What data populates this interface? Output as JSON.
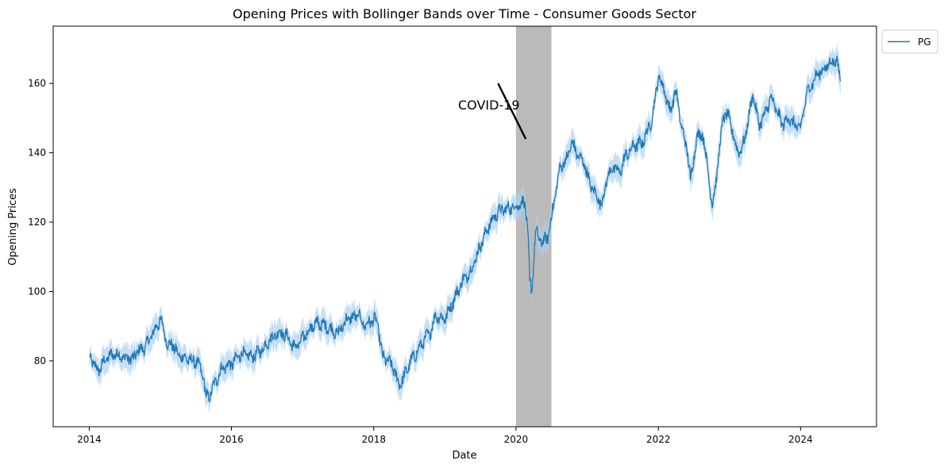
{
  "chart_data": {
    "type": "line",
    "title": "Opening Prices with Bollinger Bands over Time - Consumer Goods Sector",
    "xlabel": "Date",
    "ylabel": "Opening Prices",
    "xlim": [
      "2013-06-30",
      "2025-01-25"
    ],
    "ylim": [
      61,
      176.5
    ],
    "x_ticks": [
      "2014",
      "2016",
      "2018",
      "2020",
      "2022",
      "2024"
    ],
    "y_ticks": [
      80,
      100,
      120,
      140,
      160
    ],
    "grid": false,
    "legend": {
      "placement": "outside-top-right",
      "entries": [
        "PG"
      ]
    },
    "colors": {
      "line": "#1f77b4",
      "band": "#aed1ef",
      "shade": "#a9a9a9"
    },
    "shaded_region": {
      "start": "2020-01-01",
      "end": "2020-07-01",
      "label": ""
    },
    "annotation": {
      "text": "COVID-19",
      "text_at": [
        "2019-08-15",
        152.5
      ],
      "line_from": [
        "2019-10-01",
        160
      ],
      "line_to": [
        "2020-02-20",
        144
      ]
    },
    "series": [
      {
        "name": "PG",
        "band_width": 3,
        "points": [
          [
            "2014-01-02",
            81.5
          ],
          [
            "2014-02-15",
            77
          ],
          [
            "2014-04-01",
            81
          ],
          [
            "2014-05-15",
            82
          ],
          [
            "2014-07-01",
            81
          ],
          [
            "2014-08-15",
            80.5
          ],
          [
            "2014-09-01",
            82.5
          ],
          [
            "2014-10-15",
            84
          ],
          [
            "2014-11-15",
            87
          ],
          [
            "2014-12-15",
            90
          ],
          [
            "2015-01-01",
            92
          ],
          [
            "2015-01-20",
            89
          ],
          [
            "2015-02-10",
            84
          ],
          [
            "2015-03-01",
            85
          ],
          [
            "2015-04-01",
            82
          ],
          [
            "2015-05-15",
            80.5
          ],
          [
            "2015-06-15",
            80
          ],
          [
            "2015-07-15",
            79.5
          ],
          [
            "2015-08-10",
            75
          ],
          [
            "2015-08-25",
            69.5
          ],
          [
            "2015-09-15",
            70.5
          ],
          [
            "2015-10-15",
            74.5
          ],
          [
            "2015-11-15",
            78
          ],
          [
            "2016-01-01",
            79
          ],
          [
            "2016-02-10",
            81.5
          ],
          [
            "2016-03-01",
            82
          ],
          [
            "2016-04-15",
            81
          ],
          [
            "2016-06-01",
            83
          ],
          [
            "2016-07-15",
            86
          ],
          [
            "2016-09-01",
            88.5
          ],
          [
            "2016-10-15",
            87
          ],
          [
            "2016-11-15",
            84
          ],
          [
            "2016-12-15",
            85
          ],
          [
            "2017-02-01",
            89
          ],
          [
            "2017-03-15",
            91
          ],
          [
            "2017-05-01",
            90
          ],
          [
            "2017-07-01",
            88
          ],
          [
            "2017-08-15",
            92
          ],
          [
            "2017-10-15",
            93
          ],
          [
            "2017-11-15",
            90
          ],
          [
            "2018-01-01",
            92
          ],
          [
            "2018-01-20",
            91
          ],
          [
            "2018-02-15",
            81
          ],
          [
            "2018-03-15",
            80
          ],
          [
            "2018-04-15",
            77.5
          ],
          [
            "2018-05-10",
            73
          ],
          [
            "2018-06-01",
            75
          ],
          [
            "2018-07-15",
            80.5
          ],
          [
            "2018-08-15",
            83
          ],
          [
            "2018-09-15",
            86
          ],
          [
            "2018-10-15",
            88
          ],
          [
            "2018-11-15",
            93
          ],
          [
            "2019-01-01",
            92
          ],
          [
            "2019-02-15",
            97.5
          ],
          [
            "2019-04-01",
            103
          ],
          [
            "2019-05-15",
            106
          ],
          [
            "2019-07-01",
            113
          ],
          [
            "2019-08-15",
            119
          ],
          [
            "2019-10-01",
            123
          ],
          [
            "2019-11-15",
            124
          ],
          [
            "2020-01-01",
            124.5
          ],
          [
            "2020-02-15",
            126
          ],
          [
            "2020-03-01",
            118
          ],
          [
            "2020-03-12",
            103
          ],
          [
            "2020-03-22",
            100
          ],
          [
            "2020-04-10",
            117
          ],
          [
            "2020-05-15",
            114
          ],
          [
            "2020-06-15",
            116
          ],
          [
            "2020-07-15",
            126
          ],
          [
            "2020-08-15",
            136
          ],
          [
            "2020-09-15",
            138
          ],
          [
            "2020-10-15",
            143
          ],
          [
            "2020-11-15",
            139
          ],
          [
            "2020-12-15",
            137
          ],
          [
            "2021-01-15",
            131
          ],
          [
            "2021-02-15",
            128
          ],
          [
            "2021-03-15",
            125
          ],
          [
            "2021-04-15",
            133
          ],
          [
            "2021-05-15",
            136
          ],
          [
            "2021-06-15",
            134
          ],
          [
            "2021-07-15",
            139
          ],
          [
            "2021-09-01",
            142
          ],
          [
            "2021-10-15",
            143
          ],
          [
            "2021-12-01",
            150
          ],
          [
            "2022-01-01",
            162
          ],
          [
            "2022-02-01",
            158
          ],
          [
            "2022-03-01",
            152
          ],
          [
            "2022-04-01",
            158
          ],
          [
            "2022-05-01",
            147
          ],
          [
            "2022-06-01",
            140
          ],
          [
            "2022-06-15",
            132
          ],
          [
            "2022-07-15",
            144
          ],
          [
            "2022-08-15",
            146
          ],
          [
            "2022-09-15",
            134
          ],
          [
            "2022-10-05",
            124
          ],
          [
            "2022-11-01",
            136
          ],
          [
            "2022-12-01",
            151
          ],
          [
            "2023-01-01",
            150
          ],
          [
            "2023-02-01",
            142
          ],
          [
            "2023-03-01",
            140
          ],
          [
            "2023-04-01",
            147
          ],
          [
            "2023-05-01",
            157
          ],
          [
            "2023-06-01",
            148
          ],
          [
            "2023-07-01",
            151
          ],
          [
            "2023-08-01",
            156
          ],
          [
            "2023-09-01",
            152
          ],
          [
            "2023-10-01",
            148
          ],
          [
            "2023-11-01",
            150
          ],
          [
            "2023-12-01",
            148
          ],
          [
            "2024-01-01",
            147
          ],
          [
            "2024-02-01",
            157
          ],
          [
            "2024-03-01",
            160
          ],
          [
            "2024-04-01",
            163
          ],
          [
            "2024-05-01",
            164
          ],
          [
            "2024-06-01",
            166
          ],
          [
            "2024-07-01",
            167
          ],
          [
            "2024-07-25",
            161
          ]
        ]
      }
    ]
  }
}
